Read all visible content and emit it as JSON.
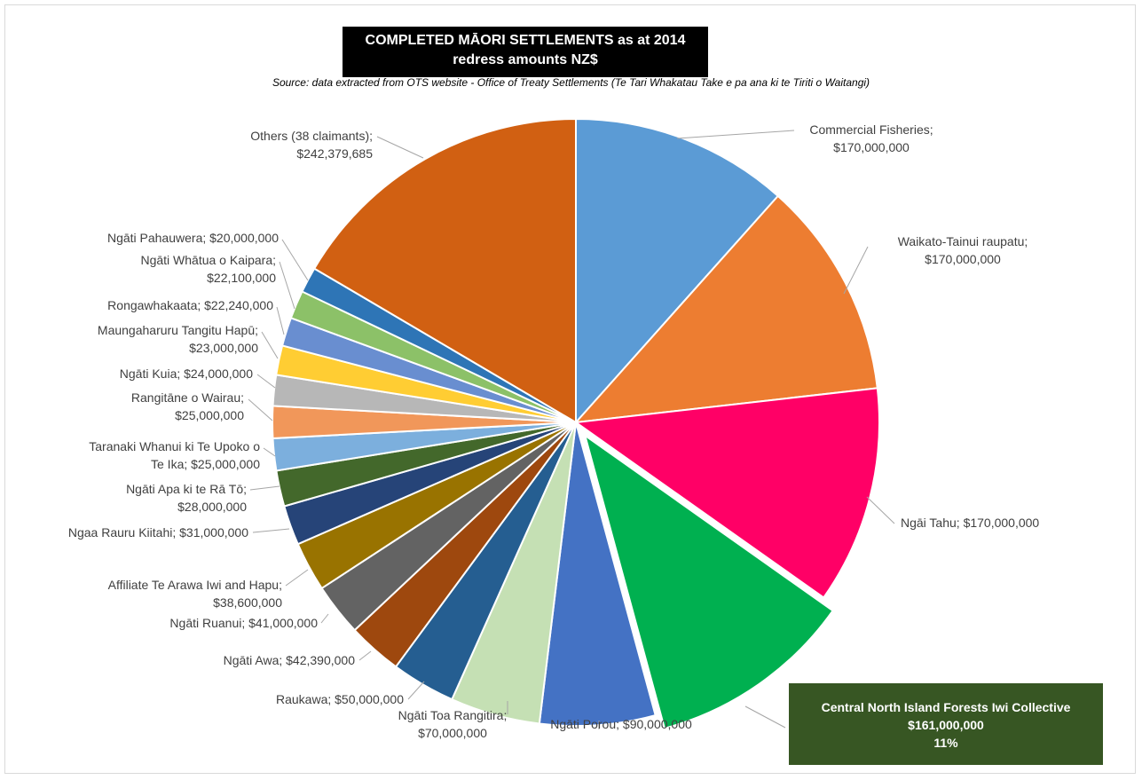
{
  "chart_data": {
    "type": "pie",
    "title_line1": "COMPLETED MĀORI SETTLEMENTS as at 2014",
    "title_line2": "redress amounts NZ$",
    "subtitle": "Source: data extracted from OTS website - Office of Treaty Settlements (Te Tari Whakatau Take e pa ana ki te Tiriti o Waitangi)",
    "slices": [
      {
        "name": "Commercial Fisheries",
        "value": 170000000,
        "color": "#5B9BD5",
        "label": [
          "Commercial Fisheries;",
          "$170,000,000"
        ]
      },
      {
        "name": "Waikato-Tainui raupatu",
        "value": 170000000,
        "color": "#ED7D31",
        "label": [
          "Waikato-Tainui raupatu;",
          "$170,000,000"
        ]
      },
      {
        "name": "Ngāi Tahu",
        "value": 170000000,
        "color": "#FF0066",
        "label": [
          "Ngāi Tahu; $170,000,000"
        ]
      },
      {
        "name": "Central North Island Forests Iwi Collective",
        "value": 161000000,
        "color": "#00B050",
        "exploded": true,
        "label": [
          "Central North Island Forests Iwi Collective",
          "$161,000,000",
          "11%"
        ]
      },
      {
        "name": "Ngāti Porou",
        "value": 90000000,
        "color": "#4472C4",
        "label": [
          "Ngāti Porou; $90,000,000"
        ]
      },
      {
        "name": "Ngāti Toa Rangitira",
        "value": 70000000,
        "color": "#C5E0B4",
        "label": [
          "Ngāti Toa Rangitira;",
          "$70,000,000"
        ]
      },
      {
        "name": "Raukawa",
        "value": 50000000,
        "color": "#255E91",
        "label": [
          "Raukawa; $50,000,000"
        ]
      },
      {
        "name": "Ngāti Awa",
        "value": 42390000,
        "color": "#9E480E",
        "label": [
          "Ngāti Awa; $42,390,000"
        ]
      },
      {
        "name": "Ngāti Ruanui",
        "value": 41000000,
        "color": "#636363",
        "label": [
          "Ngāti Ruanui; $41,000,000"
        ]
      },
      {
        "name": "Affiliate Te Arawa Iwi and Hapu",
        "value": 38600000,
        "color": "#997300",
        "label": [
          "Affiliate Te Arawa Iwi and Hapu;",
          "$38,600,000"
        ]
      },
      {
        "name": "Ngaa Rauru Kiitahi",
        "value": 31000000,
        "color": "#264478",
        "label": [
          "Ngaa Rauru Kiitahi; $31,000,000"
        ]
      },
      {
        "name": "Ngāti Apa ki te Rā Tō",
        "value": 28000000,
        "color": "#43682B",
        "label": [
          "Ngāti Apa ki te Rā Tō;",
          "$28,000,000"
        ]
      },
      {
        "name": "Taranaki Whanui ki Te Upoko o Te Ika",
        "value": 25000000,
        "color": "#7CAFDD",
        "label": [
          "Taranaki Whanui ki Te Upoko o",
          "Te Ika; $25,000,000"
        ]
      },
      {
        "name": "Rangitāne o Wairau",
        "value": 25000000,
        "color": "#F1975A",
        "label": [
          "Rangitāne o Wairau;",
          "$25,000,000"
        ]
      },
      {
        "name": "Ngāti Kuia",
        "value": 24000000,
        "color": "#B7B7B7",
        "label": [
          "Ngāti Kuia; $24,000,000"
        ]
      },
      {
        "name": "Maungaharuru Tangitu Hapū",
        "value": 23000000,
        "color": "#FFCD33",
        "label": [
          "Maungaharuru Tangitu Hapū;",
          "$23,000,000"
        ]
      },
      {
        "name": "Rongawhakaata",
        "value": 22240000,
        "color": "#698ED0",
        "label": [
          "Rongawhakaata; $22,240,000"
        ]
      },
      {
        "name": "Ngāti Whātua o Kaipara",
        "value": 22100000,
        "color": "#8CC168",
        "label": [
          "Ngāti Whātua o Kaipara;",
          "$22,100,000"
        ]
      },
      {
        "name": "Ngāti Pahauwera",
        "value": 20000000,
        "color": "#2E75B6",
        "label": [
          "Ngāti Pahauwera; $20,000,000"
        ]
      },
      {
        "name": "Others (38 claimants)",
        "value": 242379685,
        "color": "#D16012",
        "label": [
          "Others (38 claimants);",
          "$242,379,685"
        ]
      }
    ],
    "callout_bg": "#375623"
  }
}
